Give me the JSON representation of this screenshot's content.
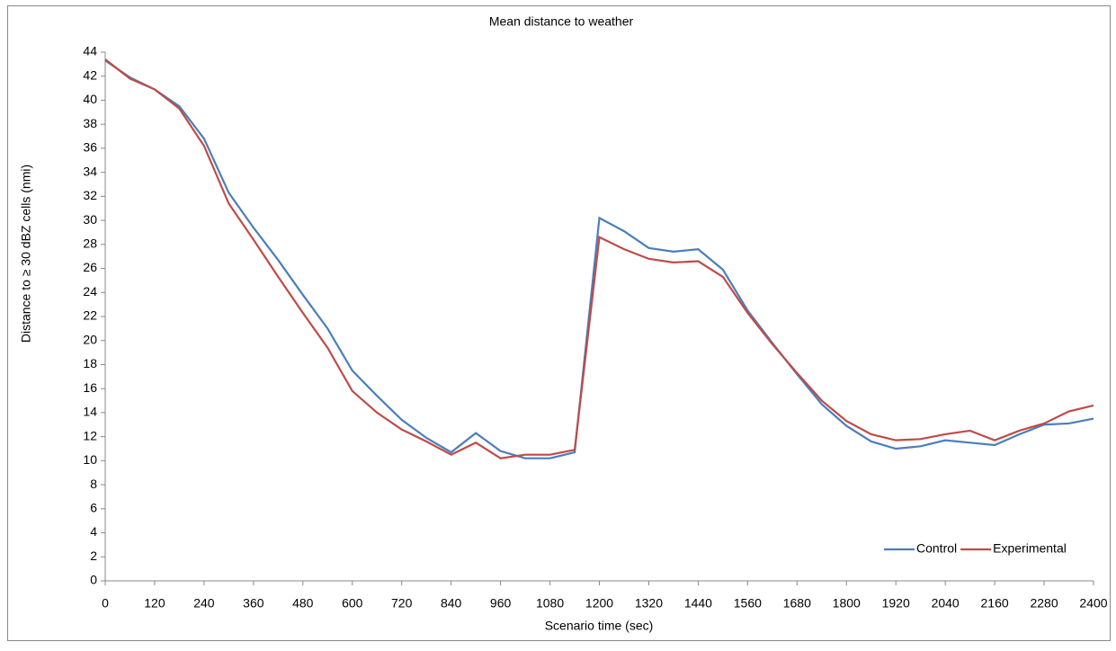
{
  "chart_data": {
    "type": "line",
    "title": "Mean distance to weather",
    "x_label": "Scenario time (sec)",
    "y_label": "Distance to ≥ 30 dBZ cells (nmi)",
    "x": [
      0,
      60,
      120,
      180,
      240,
      300,
      360,
      420,
      480,
      540,
      600,
      660,
      720,
      780,
      840,
      900,
      960,
      1020,
      1080,
      1140,
      1200,
      1260,
      1320,
      1380,
      1440,
      1500,
      1560,
      1620,
      1680,
      1740,
      1800,
      1860,
      1920,
      1980,
      2040,
      2100,
      2160,
      2220,
      2280,
      2340,
      2400
    ],
    "series": [
      {
        "name": "Control",
        "color": "#4a7ebb",
        "values": [
          43.3,
          41.9,
          40.9,
          39.5,
          36.8,
          32.3,
          29.4,
          26.7,
          23.8,
          21.0,
          17.5,
          15.4,
          13.4,
          11.9,
          10.7,
          12.3,
          10.8,
          10.2,
          10.2,
          10.7,
          30.2,
          29.1,
          27.7,
          27.4,
          27.6,
          25.9,
          22.5,
          19.8,
          17.2,
          14.7,
          12.9,
          11.6,
          11.0,
          11.2,
          11.7,
          11.5,
          11.3,
          12.2,
          13.0,
          13.1,
          13.5
        ]
      },
      {
        "name": "Experimental",
        "color": "#be4b48",
        "values": [
          43.4,
          41.8,
          40.9,
          39.3,
          36.2,
          31.4,
          28.4,
          25.3,
          22.3,
          19.4,
          15.8,
          14.0,
          12.6,
          11.6,
          10.5,
          11.5,
          10.2,
          10.5,
          10.5,
          10.9,
          28.6,
          27.6,
          26.8,
          26.5,
          26.6,
          25.3,
          22.3,
          19.7,
          17.3,
          15.0,
          13.3,
          12.2,
          11.7,
          11.8,
          12.2,
          12.5,
          11.7,
          12.5,
          13.1,
          14.1,
          14.6
        ]
      }
    ],
    "xlim": [
      0,
      2400
    ],
    "xticks": [
      0,
      120,
      240,
      360,
      480,
      600,
      720,
      840,
      960,
      1080,
      1200,
      1320,
      1440,
      1560,
      1680,
      1800,
      1920,
      2040,
      2160,
      2280,
      2400
    ],
    "ylim": [
      0,
      44
    ],
    "yticks": [
      0,
      2,
      4,
      6,
      8,
      10,
      12,
      14,
      16,
      18,
      20,
      22,
      24,
      26,
      28,
      30,
      32,
      34,
      36,
      38,
      40,
      42,
      44
    ],
    "grid": false,
    "legend": "lower right"
  }
}
